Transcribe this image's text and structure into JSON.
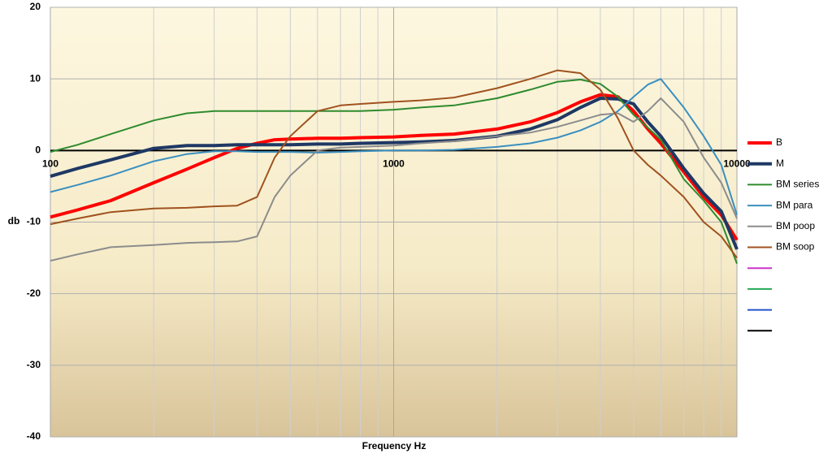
{
  "chart_data": {
    "type": "line",
    "x_label": "Frequency Hz",
    "y_label": "db",
    "xscale": "log",
    "xlim": [
      100,
      10000
    ],
    "xticks": [
      100,
      1000,
      10000
    ],
    "ylim": [
      -40,
      20
    ],
    "yticks": [
      -40,
      -30,
      -20,
      -10,
      0,
      10,
      20
    ],
    "x_axis_at": 0,
    "grid": true,
    "minor_grid": true,
    "legend": "right",
    "x": [
      100,
      120,
      150,
      200,
      250,
      300,
      350,
      400,
      450,
      500,
      600,
      700,
      800,
      1000,
      1200,
      1500,
      2000,
      2500,
      3000,
      3500,
      4000,
      4500,
      5000,
      5500,
      6000,
      7000,
      8000,
      9000,
      10000
    ],
    "series": [
      {
        "name": "B",
        "color": "#ff0000",
        "width": 4,
        "values": [
          -9.3,
          -8.3,
          -7.0,
          -4.5,
          -2.6,
          -1.0,
          0.3,
          1.0,
          1.5,
          1.6,
          1.7,
          1.7,
          1.8,
          1.9,
          2.1,
          2.3,
          3.0,
          4.0,
          5.3,
          6.8,
          7.8,
          7.5,
          5.5,
          3.0,
          1.0,
          -3.0,
          -6.5,
          -9.0,
          -12.5
        ]
      },
      {
        "name": "M",
        "color": "#1f3864",
        "width": 4,
        "values": [
          -3.6,
          -2.5,
          -1.3,
          0.3,
          0.7,
          0.7,
          0.8,
          0.8,
          0.8,
          0.8,
          0.9,
          0.9,
          1.0,
          1.1,
          1.2,
          1.4,
          2.0,
          3.0,
          4.3,
          6.0,
          7.3,
          7.2,
          6.5,
          4.0,
          2.0,
          -2.5,
          -6.0,
          -8.5,
          -13.8
        ]
      },
      {
        "name": "BM series",
        "color": "#2e8b2e",
        "width": 2,
        "values": [
          -0.2,
          0.8,
          2.3,
          4.2,
          5.2,
          5.5,
          5.5,
          5.5,
          5.5,
          5.5,
          5.5,
          5.5,
          5.5,
          5.7,
          6.0,
          6.3,
          7.3,
          8.5,
          9.6,
          9.9,
          9.3,
          7.5,
          5.0,
          3.2,
          1.5,
          -4.0,
          -7.0,
          -10.0,
          -15.8
        ]
      },
      {
        "name": "BM para",
        "color": "#3a8fc0",
        "width": 2,
        "values": [
          -5.8,
          -4.8,
          -3.5,
          -1.5,
          -0.5,
          -0.1,
          -0.1,
          -0.2,
          -0.2,
          -0.2,
          -0.3,
          -0.2,
          -0.1,
          0.0,
          0.0,
          0.1,
          0.5,
          1.0,
          1.8,
          2.8,
          4.0,
          5.5,
          7.5,
          9.2,
          10.0,
          6.0,
          2.0,
          -2.0,
          -9.0
        ]
      },
      {
        "name": "BM poop",
        "color": "#8c8c8c",
        "width": 2,
        "values": [
          -15.4,
          -14.5,
          -13.5,
          -13.2,
          -12.9,
          -12.8,
          -12.7,
          -12.0,
          -6.5,
          -3.5,
          0.0,
          0.4,
          0.5,
          0.7,
          1.0,
          1.3,
          2.0,
          2.5,
          3.3,
          4.2,
          5.0,
          5.2,
          4.0,
          5.5,
          7.3,
          4.0,
          -1.0,
          -4.5,
          -9.5
        ]
      },
      {
        "name": "BM soop",
        "color": "#a0521e",
        "width": 2,
        "values": [
          -10.3,
          -9.5,
          -8.6,
          -8.1,
          -8.0,
          -7.8,
          -7.7,
          -6.5,
          -1.0,
          2.0,
          5.5,
          6.3,
          6.5,
          6.8,
          7.0,
          7.4,
          8.7,
          10.0,
          11.2,
          10.8,
          8.5,
          4.5,
          0.0,
          -2.0,
          -3.5,
          -6.5,
          -10.0,
          -12.0,
          -15.0
        ]
      },
      {
        "name": null,
        "color": "#cc33cc",
        "width": 2,
        "values": [
          null,
          null,
          null,
          null,
          null,
          null,
          null,
          null,
          null,
          null,
          null,
          null,
          null,
          null,
          null,
          null,
          null,
          null,
          null,
          null,
          null,
          null,
          null,
          null,
          null,
          null,
          null,
          null,
          null
        ]
      },
      {
        "name": null,
        "color": "#22aa55",
        "width": 2,
        "values": [
          null,
          null,
          null,
          null,
          null,
          null,
          null,
          null,
          null,
          null,
          null,
          null,
          null,
          null,
          null,
          null,
          null,
          null,
          null,
          null,
          null,
          null,
          null,
          null,
          null,
          null,
          null,
          null,
          null
        ]
      },
      {
        "name": null,
        "color": "#2255cc",
        "width": 2,
        "values": [
          null,
          null,
          null,
          null,
          null,
          null,
          null,
          null,
          null,
          null,
          null,
          null,
          null,
          null,
          null,
          null,
          null,
          null,
          null,
          null,
          null,
          null,
          null,
          null,
          null,
          null,
          null,
          null,
          null
        ]
      },
      {
        "name": null,
        "color": "#000000",
        "width": 2,
        "values": [
          null,
          null,
          null,
          null,
          null,
          null,
          null,
          null,
          null,
          null,
          null,
          null,
          null,
          null,
          null,
          null,
          null,
          null,
          null,
          null,
          null,
          null,
          null,
          null,
          null,
          null,
          null,
          null,
          null
        ]
      }
    ]
  }
}
